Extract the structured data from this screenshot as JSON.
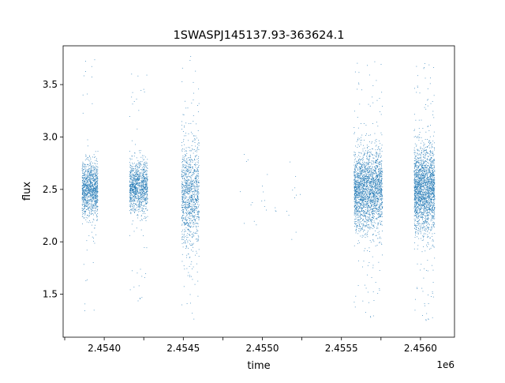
{
  "chart_data": {
    "type": "scatter",
    "title": "1SWASPJ145137.93-363624.1",
    "xlabel": "time",
    "ylabel": "flux",
    "x_offset_label": "1e6",
    "xlim": [
      2453740,
      2456215
    ],
    "ylim": [
      1.09,
      3.87
    ],
    "x_ticks": [
      2453750,
      2454000,
      2454250,
      2454500,
      2454750,
      2455000,
      2455250,
      2455500,
      2455750,
      2456000
    ],
    "x_tick_labels": [
      "",
      "2.4540",
      "",
      "2.4545",
      "",
      "2.4550",
      "",
      "2.4555",
      "",
      "2.4560"
    ],
    "y_ticks": [
      1.5,
      2.0,
      2.5,
      3.0,
      3.5
    ],
    "y_tick_labels": [
      "1.5",
      "2.0",
      "2.5",
      "3.0",
      "3.5"
    ],
    "grid": false,
    "marker_color": "#1f77b4",
    "series": [
      {
        "clusters": [
          {
            "x_range": [
              2453860,
              2453960
            ],
            "center": 2.5,
            "spread": 0.13,
            "min": 1.25,
            "max": 3.8,
            "n": 1100
          },
          {
            "x_range": [
              2454160,
              2454275
            ],
            "center": 2.52,
            "spread": 0.12,
            "min": 1.43,
            "max": 3.65,
            "n": 1100
          },
          {
            "x_range": [
              2454490,
              2454600
            ],
            "center": 2.45,
            "spread": 0.25,
            "min": 1.22,
            "max": 3.8,
            "n": 1100
          },
          {
            "x_range": [
              2454860,
              2455240
            ],
            "center": 2.4,
            "spread": 0.2,
            "min": 1.95,
            "max": 2.88,
            "n": 30
          },
          {
            "x_range": [
              2455580,
              2455760
            ],
            "center": 2.5,
            "spread": 0.19,
            "min": 1.25,
            "max": 3.76,
            "n": 2300
          },
          {
            "x_range": [
              2455960,
              2456090
            ],
            "center": 2.5,
            "spread": 0.2,
            "min": 1.22,
            "max": 3.73,
            "n": 2100
          }
        ]
      }
    ]
  }
}
